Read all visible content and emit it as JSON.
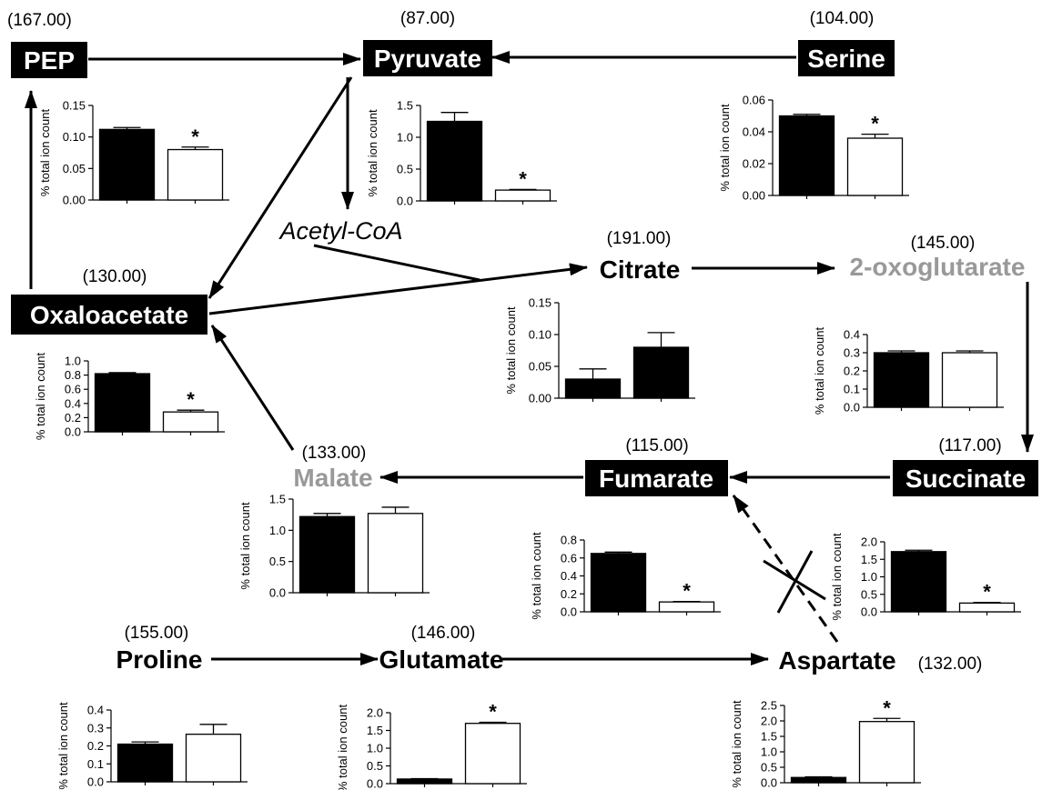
{
  "metabolites": [
    {
      "id": "pep",
      "name": "PEP",
      "mass": "(167.00)",
      "style": "box"
    },
    {
      "id": "pyruvate",
      "name": "Pyruvate",
      "mass": "(87.00)",
      "style": "box"
    },
    {
      "id": "serine",
      "name": "Serine",
      "mass": "(104.00)",
      "style": "box"
    },
    {
      "id": "acetylcoa",
      "name": "Acetyl-CoA",
      "mass": "",
      "style": "italic"
    },
    {
      "id": "citrate",
      "name": "Citrate",
      "mass": "(191.00)",
      "style": "bold"
    },
    {
      "id": "oxoglutarate",
      "name": "2-oxoglutarate",
      "mass": "(145.00)",
      "style": "gray"
    },
    {
      "id": "oxaloacetate",
      "name": "Oxaloacetate",
      "mass": "(130.00)",
      "style": "box"
    },
    {
      "id": "malate",
      "name": "Malate",
      "mass": "(133.00)",
      "style": "gray"
    },
    {
      "id": "fumarate",
      "name": "Fumarate",
      "mass": "(115.00)",
      "style": "box"
    },
    {
      "id": "succinate",
      "name": "Succinate",
      "mass": "(117.00)",
      "style": "box"
    },
    {
      "id": "proline",
      "name": "Proline",
      "mass": "(155.00)",
      "style": "bold"
    },
    {
      "id": "glutamate",
      "name": "Glutamate",
      "mass": "(146.00)",
      "style": "bold"
    },
    {
      "id": "aspartate",
      "name": "Aspartate",
      "mass": "(132.00)",
      "style": "bold"
    }
  ],
  "colors": {
    "box_fill": "#000000",
    "box_text": "#ffffff",
    "gray_text": "#999999",
    "bar_dark": "#000000",
    "bar_light": "#ffffff"
  },
  "chart_data": [
    {
      "id": "pep",
      "type": "bar",
      "ylabel": "% total ion count",
      "ylim": [
        0,
        0.15
      ],
      "yticks": [
        "0.00",
        "0.05",
        "0.10",
        "0.15"
      ],
      "values": [
        0.112,
        0.08
      ],
      "errors": [
        0.003,
        0.004
      ],
      "significant": [
        false,
        true
      ],
      "colors": [
        "dark",
        "light"
      ]
    },
    {
      "id": "pyruvate",
      "type": "bar",
      "ylabel": "% total ion count",
      "ylim": [
        0,
        1.5
      ],
      "yticks": [
        "0.0",
        "0.5",
        "1.0",
        "1.5"
      ],
      "values": [
        1.25,
        0.17
      ],
      "errors": [
        0.14,
        0.01
      ],
      "significant": [
        false,
        true
      ],
      "colors": [
        "dark",
        "light"
      ]
    },
    {
      "id": "serine",
      "type": "bar",
      "ylabel": "% total ion count",
      "ylim": [
        0,
        0.06
      ],
      "yticks": [
        "0.00",
        "0.02",
        "0.04",
        "0.06"
      ],
      "values": [
        0.05,
        0.036
      ],
      "errors": [
        0.001,
        0.0025
      ],
      "significant": [
        false,
        true
      ],
      "colors": [
        "dark",
        "light"
      ]
    },
    {
      "id": "citrate",
      "type": "bar",
      "ylabel": "% total ion count",
      "ylim": [
        0,
        0.15
      ],
      "yticks": [
        "0.00",
        "0.05",
        "0.10",
        "0.15"
      ],
      "values": [
        0.03,
        0.08
      ],
      "errors": [
        0.016,
        0.023
      ],
      "significant": [
        false,
        false
      ],
      "colors": [
        "dark",
        "dark"
      ]
    },
    {
      "id": "oxoglutarate",
      "type": "bar",
      "ylabel": "% total ion count",
      "ylim": [
        0,
        0.4
      ],
      "yticks": [
        "0.0",
        "0.1",
        "0.2",
        "0.3",
        "0.4"
      ],
      "values": [
        0.3,
        0.3
      ],
      "errors": [
        0.01,
        0.01
      ],
      "significant": [
        false,
        false
      ],
      "colors": [
        "dark",
        "light"
      ]
    },
    {
      "id": "oxaloacetate",
      "type": "bar",
      "ylabel": "% total ion count",
      "ylim": [
        0,
        1.0
      ],
      "yticks": [
        "0.0",
        "0.2",
        "0.4",
        "0.6",
        "0.8",
        "1.0"
      ],
      "values": [
        0.82,
        0.28
      ],
      "errors": [
        0.015,
        0.025
      ],
      "significant": [
        false,
        true
      ],
      "colors": [
        "dark",
        "light"
      ]
    },
    {
      "id": "malate",
      "type": "bar",
      "ylabel": "% total ion count",
      "ylim": [
        0,
        1.5
      ],
      "yticks": [
        "0.0",
        "0.5",
        "1.0",
        "1.5"
      ],
      "values": [
        1.22,
        1.27
      ],
      "errors": [
        0.05,
        0.1
      ],
      "significant": [
        false,
        false
      ],
      "colors": [
        "dark",
        "light"
      ]
    },
    {
      "id": "fumarate",
      "type": "bar",
      "ylabel": "% total ion count",
      "ylim": [
        0,
        0.8
      ],
      "yticks": [
        "0.0",
        "0.2",
        "0.4",
        "0.6",
        "0.8"
      ],
      "values": [
        0.65,
        0.11
      ],
      "errors": [
        0.015,
        0.005
      ],
      "significant": [
        false,
        true
      ],
      "colors": [
        "dark",
        "light"
      ]
    },
    {
      "id": "succinate",
      "type": "bar",
      "ylabel": "% total ion count",
      "ylim": [
        0,
        2.0
      ],
      "yticks": [
        "0.0",
        "0.5",
        "1.0",
        "1.5",
        "2.0"
      ],
      "values": [
        1.72,
        0.25
      ],
      "errors": [
        0.04,
        0.02
      ],
      "significant": [
        false,
        true
      ],
      "colors": [
        "dark",
        "light"
      ]
    },
    {
      "id": "proline",
      "type": "bar",
      "ylabel": "% total ion count",
      "ylim": [
        0,
        0.4
      ],
      "yticks": [
        "0.0",
        "0.1",
        "0.2",
        "0.3",
        "0.4"
      ],
      "values": [
        0.21,
        0.265
      ],
      "errors": [
        0.012,
        0.055
      ],
      "significant": [
        false,
        false
      ],
      "colors": [
        "dark",
        "light"
      ]
    },
    {
      "id": "glutamate",
      "type": "bar",
      "ylabel": "% total ion count",
      "ylim": [
        0,
        2.0
      ],
      "yticks": [
        "0.0",
        "0.5",
        "1.0",
        "1.5",
        "2.0"
      ],
      "values": [
        0.13,
        1.7
      ],
      "errors": [
        0.01,
        0.03
      ],
      "significant": [
        false,
        true
      ],
      "colors": [
        "dark",
        "light"
      ]
    },
    {
      "id": "aspartate",
      "type": "bar",
      "ylabel": "% total ion count",
      "ylim": [
        0,
        2.5
      ],
      "yticks": [
        "0.0",
        "0.5",
        "1.0",
        "1.5",
        "2.0",
        "2.5"
      ],
      "values": [
        0.17,
        1.98
      ],
      "errors": [
        0.02,
        0.1
      ],
      "significant": [
        false,
        true
      ],
      "colors": [
        "dark",
        "light"
      ]
    }
  ]
}
